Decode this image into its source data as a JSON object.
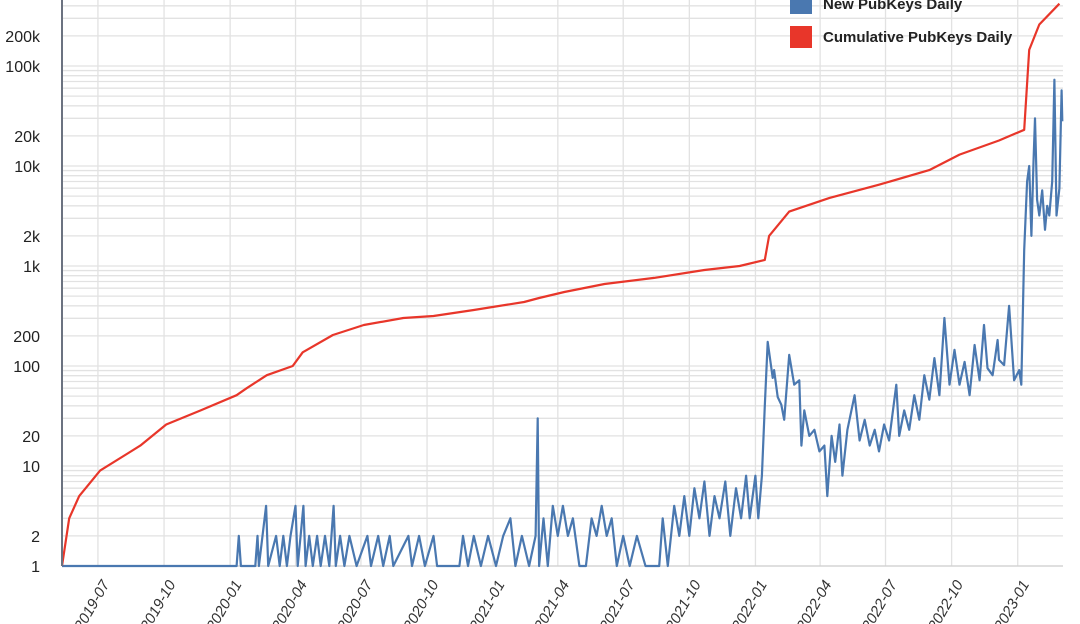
{
  "chart_data": {
    "type": "line",
    "title": "",
    "xlabel": "",
    "ylabel": "",
    "yscale": "log",
    "ylim": [
      1,
      450000
    ],
    "xlim": [
      "2019-05-12",
      "2023-03-05"
    ],
    "grid": true,
    "legend_position": "top-right",
    "y_tick_labels": [
      {
        "value": 1,
        "label": "1"
      },
      {
        "value": 2,
        "label": "2"
      },
      {
        "value": 10,
        "label": "10"
      },
      {
        "value": 20,
        "label": "20"
      },
      {
        "value": 100,
        "label": "100"
      },
      {
        "value": 200,
        "label": "200"
      },
      {
        "value": 1000,
        "label": "1k"
      },
      {
        "value": 2000,
        "label": "2k"
      },
      {
        "value": 10000,
        "label": "10k"
      },
      {
        "value": 20000,
        "label": "20k"
      },
      {
        "value": 100000,
        "label": "100k"
      },
      {
        "value": 200000,
        "label": "200k"
      }
    ],
    "x_tick_labels": [
      "2019-07",
      "2019-10",
      "2020-01",
      "2020-04",
      "2020-07",
      "2020-10",
      "2021-01",
      "2021-04",
      "2021-07",
      "2021-10",
      "2022-01",
      "2022-04",
      "2022-07",
      "2022-10",
      "2023-01"
    ],
    "series": [
      {
        "name": "New PubKeys Daily",
        "color": "#4a78b0",
        "points": [
          [
            "2019-05-12",
            1
          ],
          [
            "2020-01-10",
            1
          ],
          [
            "2020-01-13",
            2
          ],
          [
            "2020-01-16",
            1
          ],
          [
            "2020-02-05",
            1
          ],
          [
            "2020-02-08",
            2
          ],
          [
            "2020-02-10",
            1
          ],
          [
            "2020-02-20",
            4
          ],
          [
            "2020-02-23",
            1
          ],
          [
            "2020-03-05",
            2
          ],
          [
            "2020-03-10",
            1
          ],
          [
            "2020-03-15",
            2
          ],
          [
            "2020-03-20",
            1
          ],
          [
            "2020-03-25",
            2
          ],
          [
            "2020-04-01",
            4
          ],
          [
            "2020-04-04",
            1
          ],
          [
            "2020-04-08",
            2
          ],
          [
            "2020-04-12",
            4
          ],
          [
            "2020-04-15",
            1
          ],
          [
            "2020-04-20",
            2
          ],
          [
            "2020-04-25",
            1
          ],
          [
            "2020-05-01",
            2
          ],
          [
            "2020-05-06",
            1
          ],
          [
            "2020-05-12",
            2
          ],
          [
            "2020-05-18",
            1
          ],
          [
            "2020-05-24",
            4
          ],
          [
            "2020-05-27",
            1
          ],
          [
            "2020-06-02",
            2
          ],
          [
            "2020-06-08",
            1
          ],
          [
            "2020-06-15",
            2
          ],
          [
            "2020-06-25",
            1
          ],
          [
            "2020-07-10",
            2
          ],
          [
            "2020-07-15",
            1
          ],
          [
            "2020-07-25",
            2
          ],
          [
            "2020-08-01",
            1
          ],
          [
            "2020-08-10",
            2
          ],
          [
            "2020-08-15",
            1
          ],
          [
            "2020-09-05",
            2
          ],
          [
            "2020-09-10",
            1
          ],
          [
            "2020-09-20",
            2
          ],
          [
            "2020-09-28",
            1
          ],
          [
            "2020-10-10",
            2
          ],
          [
            "2020-10-15",
            1
          ],
          [
            "2020-11-15",
            1
          ],
          [
            "2020-11-20",
            2
          ],
          [
            "2020-11-27",
            1
          ],
          [
            "2020-12-05",
            2
          ],
          [
            "2020-12-15",
            1
          ],
          [
            "2020-12-25",
            2
          ],
          [
            "2021-01-05",
            1
          ],
          [
            "2021-01-15",
            2
          ],
          [
            "2021-01-25",
            3
          ],
          [
            "2021-02-01",
            1
          ],
          [
            "2021-02-10",
            2
          ],
          [
            "2021-02-20",
            1
          ],
          [
            "2021-03-01",
            2
          ],
          [
            "2021-03-04",
            30
          ],
          [
            "2021-03-06",
            1
          ],
          [
            "2021-03-12",
            3
          ],
          [
            "2021-03-18",
            1
          ],
          [
            "2021-03-25",
            4
          ],
          [
            "2021-04-01",
            2
          ],
          [
            "2021-04-08",
            4
          ],
          [
            "2021-04-15",
            2
          ],
          [
            "2021-04-22",
            3
          ],
          [
            "2021-05-01",
            1
          ],
          [
            "2021-05-10",
            1
          ],
          [
            "2021-05-18",
            3
          ],
          [
            "2021-05-25",
            2
          ],
          [
            "2021-06-01",
            4
          ],
          [
            "2021-06-08",
            2
          ],
          [
            "2021-06-15",
            3
          ],
          [
            "2021-06-22",
            1
          ],
          [
            "2021-07-01",
            2
          ],
          [
            "2021-07-10",
            1
          ],
          [
            "2021-07-20",
            2
          ],
          [
            "2021-08-01",
            1
          ],
          [
            "2021-08-20",
            1
          ],
          [
            "2021-08-25",
            3
          ],
          [
            "2021-09-01",
            1
          ],
          [
            "2021-09-10",
            4
          ],
          [
            "2021-09-17",
            2
          ],
          [
            "2021-09-24",
            5
          ],
          [
            "2021-10-01",
            2
          ],
          [
            "2021-10-08",
            6
          ],
          [
            "2021-10-15",
            3
          ],
          [
            "2021-10-22",
            7
          ],
          [
            "2021-10-29",
            2
          ],
          [
            "2021-11-05",
            5
          ],
          [
            "2021-11-12",
            3
          ],
          [
            "2021-11-20",
            7
          ],
          [
            "2021-11-27",
            2
          ],
          [
            "2021-12-05",
            6
          ],
          [
            "2021-12-12",
            3
          ],
          [
            "2021-12-19",
            8
          ],
          [
            "2021-12-24",
            3
          ],
          [
            "2022-01-01",
            8
          ],
          [
            "2022-01-05",
            3
          ],
          [
            "2022-01-10",
            8
          ],
          [
            "2022-01-14",
            40
          ],
          [
            "2022-01-18",
            174
          ],
          [
            "2022-01-25",
            76
          ],
          [
            "2022-01-27",
            91
          ],
          [
            "2022-02-01",
            49
          ],
          [
            "2022-02-06",
            41
          ],
          [
            "2022-02-10",
            29
          ],
          [
            "2022-02-17",
            129
          ],
          [
            "2022-02-24",
            65
          ],
          [
            "2022-03-03",
            72
          ],
          [
            "2022-03-06",
            16
          ],
          [
            "2022-03-10",
            36
          ],
          [
            "2022-03-17",
            20
          ],
          [
            "2022-03-24",
            23
          ],
          [
            "2022-03-31",
            14
          ],
          [
            "2022-04-07",
            16
          ],
          [
            "2022-04-11",
            5
          ],
          [
            "2022-04-17",
            20
          ],
          [
            "2022-04-22",
            11
          ],
          [
            "2022-04-28",
            26
          ],
          [
            "2022-05-02",
            8
          ],
          [
            "2022-05-09",
            23
          ],
          [
            "2022-05-19",
            51
          ],
          [
            "2022-05-26",
            18
          ],
          [
            "2022-06-02",
            29
          ],
          [
            "2022-06-09",
            16
          ],
          [
            "2022-06-16",
            23
          ],
          [
            "2022-06-22",
            14
          ],
          [
            "2022-06-29",
            26
          ],
          [
            "2022-07-06",
            18
          ],
          [
            "2022-07-16",
            65
          ],
          [
            "2022-07-20",
            20
          ],
          [
            "2022-07-27",
            36
          ],
          [
            "2022-08-03",
            23
          ],
          [
            "2022-08-10",
            51
          ],
          [
            "2022-08-17",
            29
          ],
          [
            "2022-08-24",
            81
          ],
          [
            "2022-08-31",
            46
          ],
          [
            "2022-09-07",
            120
          ],
          [
            "2022-09-14",
            51
          ],
          [
            "2022-09-21",
            302
          ],
          [
            "2022-09-28",
            65
          ],
          [
            "2022-10-05",
            145
          ],
          [
            "2022-10-12",
            65
          ],
          [
            "2022-10-19",
            110
          ],
          [
            "2022-10-26",
            51
          ],
          [
            "2022-11-02",
            162
          ],
          [
            "2022-11-09",
            72
          ],
          [
            "2022-11-15",
            257
          ],
          [
            "2022-11-20",
            95
          ],
          [
            "2022-11-27",
            81
          ],
          [
            "2022-12-04",
            182
          ],
          [
            "2022-12-06",
            115
          ],
          [
            "2022-12-13",
            102
          ],
          [
            "2022-12-20",
            400
          ],
          [
            "2022-12-27",
            72
          ],
          [
            "2023-01-03",
            91
          ],
          [
            "2023-01-06",
            65
          ],
          [
            "2023-01-10",
            1445
          ],
          [
            "2023-01-14",
            7000
          ],
          [
            "2023-01-17",
            10000
          ],
          [
            "2023-01-20",
            2000
          ],
          [
            "2023-01-23",
            11000
          ],
          [
            "2023-01-25",
            30000
          ],
          [
            "2023-01-28",
            4600
          ],
          [
            "2023-01-31",
            3200
          ],
          [
            "2023-02-04",
            5700
          ],
          [
            "2023-02-08",
            2300
          ],
          [
            "2023-02-11",
            4000
          ],
          [
            "2023-02-14",
            3200
          ],
          [
            "2023-02-18",
            7000
          ],
          [
            "2023-02-21",
            73000
          ],
          [
            "2023-02-24",
            3200
          ],
          [
            "2023-02-28",
            6000
          ],
          [
            "2023-03-03",
            57000
          ],
          [
            "2023-03-04",
            28000
          ]
        ]
      },
      {
        "name": "Cumulative PubKeys Daily",
        "color": "#e8362a",
        "points": [
          [
            "2019-05-12",
            1
          ],
          [
            "2019-05-22",
            3
          ],
          [
            "2019-06-05",
            5
          ],
          [
            "2019-07-04",
            9
          ],
          [
            "2019-08-29",
            16
          ],
          [
            "2019-10-04",
            26
          ],
          [
            "2019-11-21",
            36
          ],
          [
            "2020-01-10",
            51
          ],
          [
            "2020-01-24",
            60
          ],
          [
            "2020-02-21",
            81
          ],
          [
            "2020-03-28",
            100
          ],
          [
            "2020-04-11",
            137
          ],
          [
            "2020-05-23",
            204
          ],
          [
            "2020-07-05",
            257
          ],
          [
            "2020-08-29",
            302
          ],
          [
            "2020-10-10",
            316
          ],
          [
            "2020-12-05",
            363
          ],
          [
            "2021-02-13",
            437
          ],
          [
            "2021-03-06",
            479
          ],
          [
            "2021-04-10",
            550
          ],
          [
            "2021-06-05",
            660
          ],
          [
            "2021-08-13",
            760
          ],
          [
            "2021-10-22",
            912
          ],
          [
            "2021-12-10",
            1000
          ],
          [
            "2022-01-14",
            1150
          ],
          [
            "2022-01-20",
            2000
          ],
          [
            "2022-02-17",
            3500
          ],
          [
            "2022-04-14",
            4800
          ],
          [
            "2022-06-22",
            6500
          ],
          [
            "2022-08-31",
            9100
          ],
          [
            "2022-10-12",
            13000
          ],
          [
            "2022-12-06",
            18000
          ],
          [
            "2023-01-10",
            23000
          ],
          [
            "2023-01-17",
            145000
          ],
          [
            "2023-01-31",
            260000
          ],
          [
            "2023-02-28",
            420000
          ]
        ]
      }
    ]
  }
}
